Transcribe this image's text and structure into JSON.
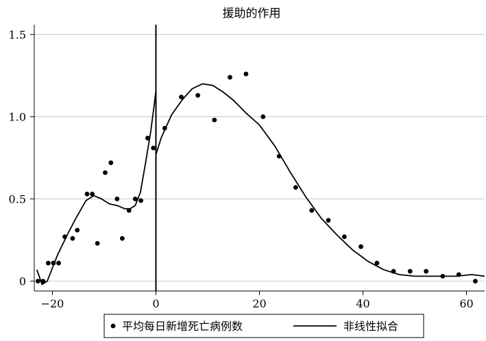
{
  "chart_data": {
    "type": "scatter",
    "title": "援助的作用",
    "xlabel": "",
    "ylabel": "",
    "xlim": [
      -23.5,
      63.5
    ],
    "ylim": [
      -0.06,
      1.56
    ],
    "x_ticks": [
      -20,
      0,
      20,
      40,
      60
    ],
    "x_tick_labels": [
      "−20",
      "0",
      "20",
      "40",
      "60"
    ],
    "y_ticks": [
      0,
      0.5,
      1.0,
      1.5
    ],
    "y_tick_labels": [
      "0",
      "0.5",
      "1.0",
      "1.5"
    ],
    "grid": "horizontal",
    "vline_x": 0,
    "legend": {
      "placement": "bottom",
      "entries": [
        {
          "label": "平均每日新增死亡病例数",
          "marker": "dot"
        },
        {
          "label": "非线性拟合",
          "marker": "line"
        }
      ]
    },
    "series": [
      {
        "name": "平均每日新增死亡病例数",
        "kind": "scatter",
        "points": [
          [
            -22.8,
            0.0
          ],
          [
            -21.8,
            0.0
          ],
          [
            -20.8,
            0.11
          ],
          [
            -19.8,
            0.11
          ],
          [
            -18.8,
            0.11
          ],
          [
            -17.6,
            0.27
          ],
          [
            -16.1,
            0.26
          ],
          [
            -15.2,
            0.31
          ],
          [
            -13.3,
            0.53
          ],
          [
            -12.3,
            0.53
          ],
          [
            -11.3,
            0.23
          ],
          [
            -9.8,
            0.66
          ],
          [
            -8.7,
            0.72
          ],
          [
            -7.5,
            0.5
          ],
          [
            -6.5,
            0.26
          ],
          [
            -5.2,
            0.43
          ],
          [
            -4.0,
            0.5
          ],
          [
            -2.9,
            0.49
          ],
          [
            -1.6,
            0.87
          ],
          [
            -0.5,
            0.81
          ],
          [
            1.7,
            0.93
          ],
          [
            4.9,
            1.12
          ],
          [
            8.1,
            1.13
          ],
          [
            11.3,
            0.98
          ],
          [
            14.3,
            1.24
          ],
          [
            17.4,
            1.26
          ],
          [
            20.7,
            1.0
          ],
          [
            23.8,
            0.76
          ],
          [
            27.0,
            0.57
          ],
          [
            30.1,
            0.43
          ],
          [
            33.3,
            0.37
          ],
          [
            36.4,
            0.27
          ],
          [
            39.6,
            0.21
          ],
          [
            42.7,
            0.11
          ],
          [
            45.9,
            0.06
          ],
          [
            49.1,
            0.06
          ],
          [
            52.2,
            0.06
          ],
          [
            55.4,
            0.03
          ],
          [
            58.5,
            0.04
          ],
          [
            61.7,
            0.0
          ]
        ]
      },
      {
        "name": "非线性拟合",
        "kind": "line",
        "points": [
          [
            -23.0,
            0.07
          ],
          [
            -22.0,
            -0.02
          ],
          [
            -21.0,
            0.0
          ],
          [
            -20.0,
            0.08
          ],
          [
            -19.0,
            0.16
          ],
          [
            -17.0,
            0.29
          ],
          [
            -15.5,
            0.38
          ],
          [
            -13.5,
            0.49
          ],
          [
            -12.0,
            0.52
          ],
          [
            -10.5,
            0.5
          ],
          [
            -9.0,
            0.47
          ],
          [
            -7.5,
            0.46
          ],
          [
            -6.0,
            0.44
          ],
          [
            -5.0,
            0.44
          ],
          [
            -4.0,
            0.46
          ],
          [
            -3.0,
            0.54
          ],
          [
            -2.0,
            0.72
          ],
          [
            -1.0,
            0.91
          ],
          [
            -0.3,
            1.08
          ],
          [
            0.0,
            1.16
          ],
          [
            0.0,
            0.77
          ],
          [
            1.0,
            0.87
          ],
          [
            3.0,
            1.01
          ],
          [
            5.0,
            1.1
          ],
          [
            7.0,
            1.17
          ],
          [
            9.0,
            1.2
          ],
          [
            11.0,
            1.19
          ],
          [
            13.0,
            1.15
          ],
          [
            15.0,
            1.1
          ],
          [
            17.5,
            1.02
          ],
          [
            20.0,
            0.95
          ],
          [
            23.0,
            0.82
          ],
          [
            26.0,
            0.66
          ],
          [
            29.0,
            0.51
          ],
          [
            32.0,
            0.38
          ],
          [
            35.0,
            0.28
          ],
          [
            38.0,
            0.19
          ],
          [
            41.0,
            0.12
          ],
          [
            44.0,
            0.07
          ],
          [
            47.0,
            0.04
          ],
          [
            50.0,
            0.03
          ],
          [
            54.0,
            0.03
          ],
          [
            58.0,
            0.03
          ],
          [
            61.0,
            0.04
          ],
          [
            63.5,
            0.03
          ]
        ]
      }
    ]
  }
}
